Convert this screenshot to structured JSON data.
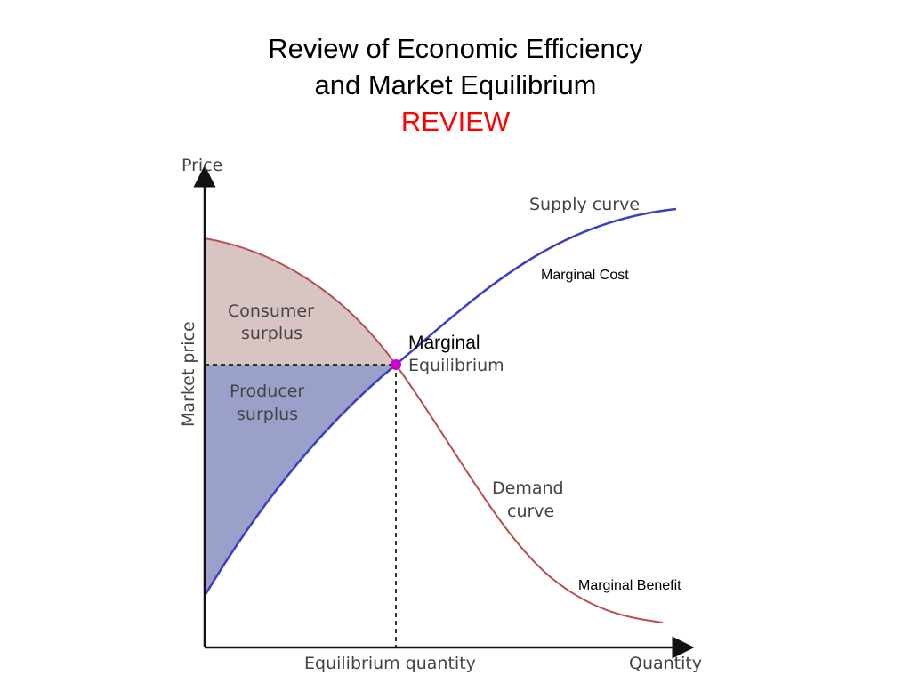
{
  "slide": {
    "title_line1": "Review of Economic Efficiency",
    "title_line2": "and Market Equilibrium",
    "title_line3": "REVIEW"
  },
  "diagram": {
    "y_axis_label": "Price",
    "x_axis_label": "Quantity",
    "market_price_label": "Market price",
    "equilibrium_quantity_label": "Equilibrium quantity",
    "supply_label": "Supply curve",
    "demand_label_line1": "Demand",
    "demand_label_line2": "curve",
    "consumer_surplus_line1": "Consumer",
    "consumer_surplus_line2": "surplus",
    "producer_surplus_line1": "Producer",
    "producer_surplus_line2": "surplus",
    "equilibrium_label": "Equilibrium",
    "colors": {
      "supply": "#3a3fc4",
      "demand": "#b5504f",
      "consumer_fill": "#d9c4c4",
      "producer_fill": "#9aa0c9",
      "equilibrium_point": "#cc00cc",
      "axis": "#111111"
    }
  },
  "annotations": {
    "marginal_cost": "Marginal Cost",
    "marginal": "Marginal",
    "marginal_benefit": "Marginal Benefit"
  }
}
